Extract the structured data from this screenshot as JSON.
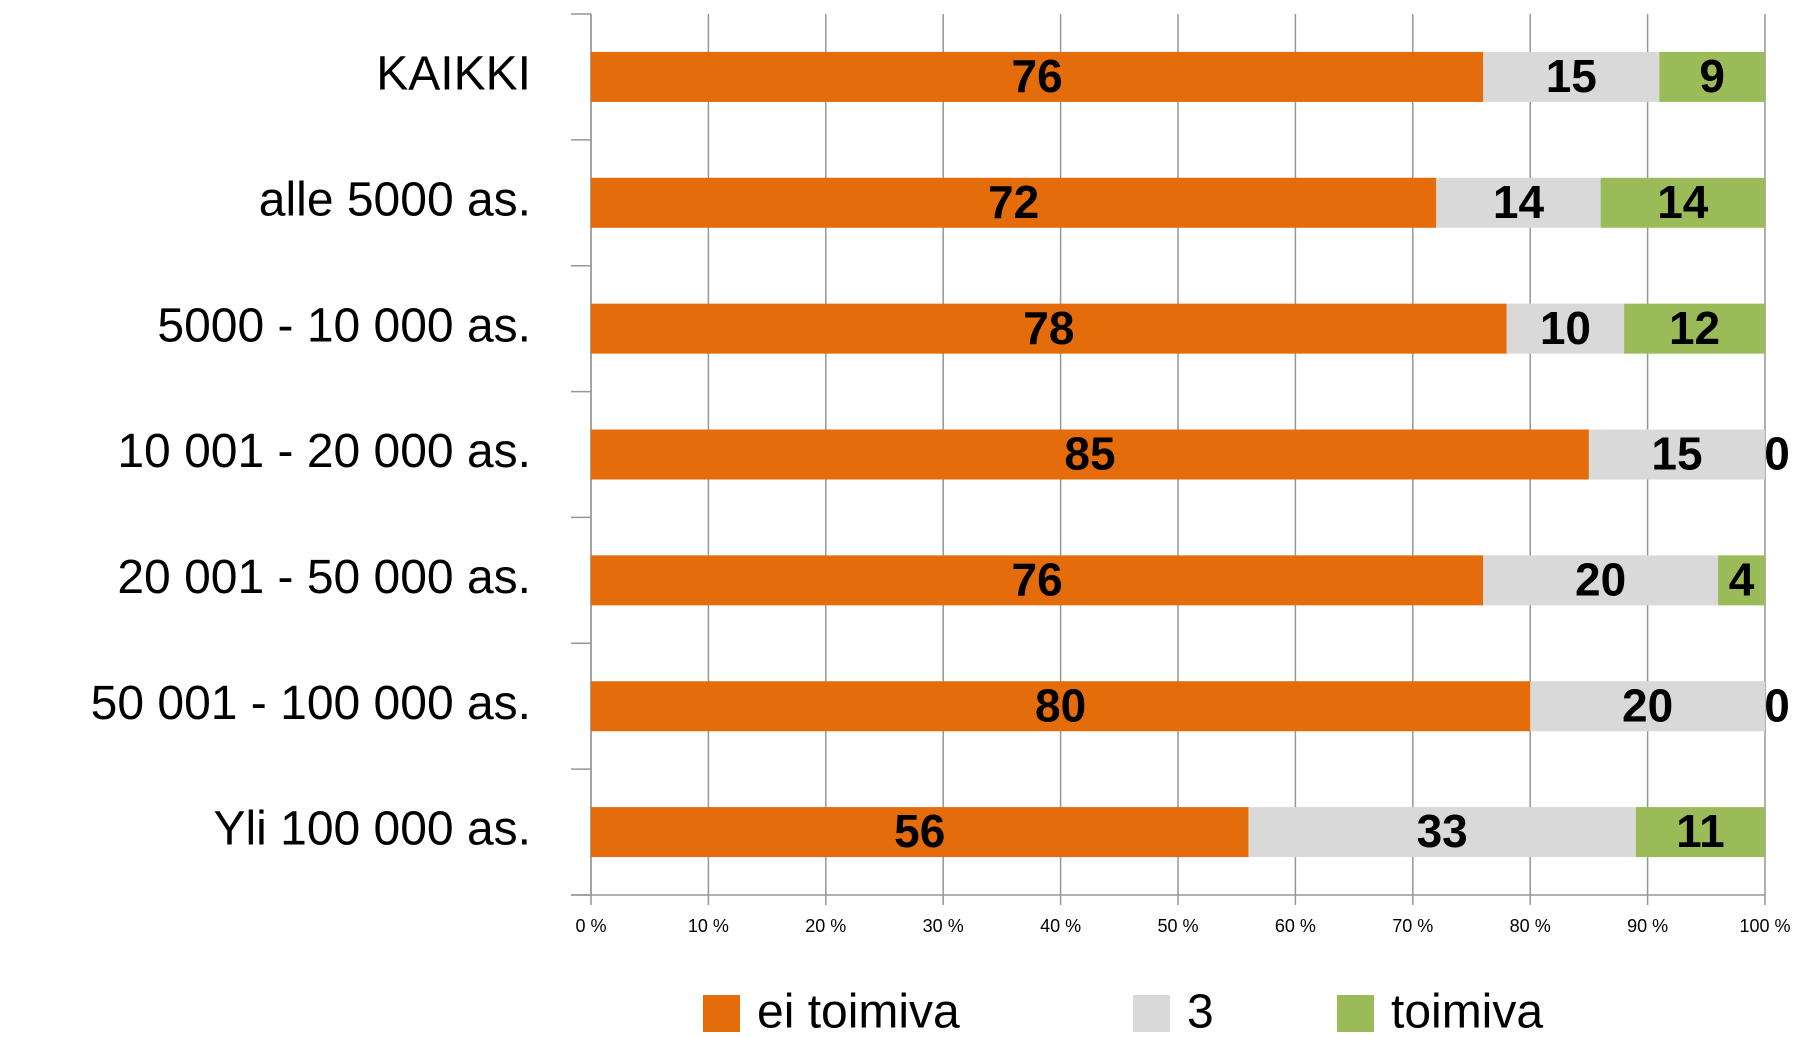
{
  "chart_data": {
    "type": "stacked-bar-horizontal",
    "categories": [
      "KAIKKI",
      "alle 5000 as.",
      "5000 - 10 000 as.",
      "10 001 - 20 000 as.",
      "20 001 - 50 000 as.",
      "50 001 - 100 000 as.",
      "Yli 100 000 as."
    ],
    "series": [
      {
        "name": "ei toimiva",
        "color": "#e46c0a",
        "values": [
          76,
          72,
          78,
          85,
          76,
          80,
          56
        ]
      },
      {
        "name": "3",
        "color": "#d9d9d9",
        "values": [
          15,
          14,
          10,
          15,
          20,
          20,
          33
        ]
      },
      {
        "name": "toimiva",
        "color": "#9bbb59",
        "values": [
          9,
          14,
          12,
          0,
          4,
          0,
          11
        ]
      }
    ],
    "xlim": [
      0,
      100
    ],
    "xticks": [
      {
        "value": 0,
        "label": "0 %"
      },
      {
        "value": 10,
        "label": "10 %"
      },
      {
        "value": 20,
        "label": "20 %"
      },
      {
        "value": 30,
        "label": "30 %"
      },
      {
        "value": 40,
        "label": "40 %"
      },
      {
        "value": 50,
        "label": "50 %"
      },
      {
        "value": 60,
        "label": "60 %"
      },
      {
        "value": 70,
        "label": "70 %"
      },
      {
        "value": 80,
        "label": "80 %"
      },
      {
        "value": 90,
        "label": "90 %"
      },
      {
        "value": 100,
        "label": "100 %"
      }
    ],
    "grid": true,
    "legend": "bottom"
  }
}
